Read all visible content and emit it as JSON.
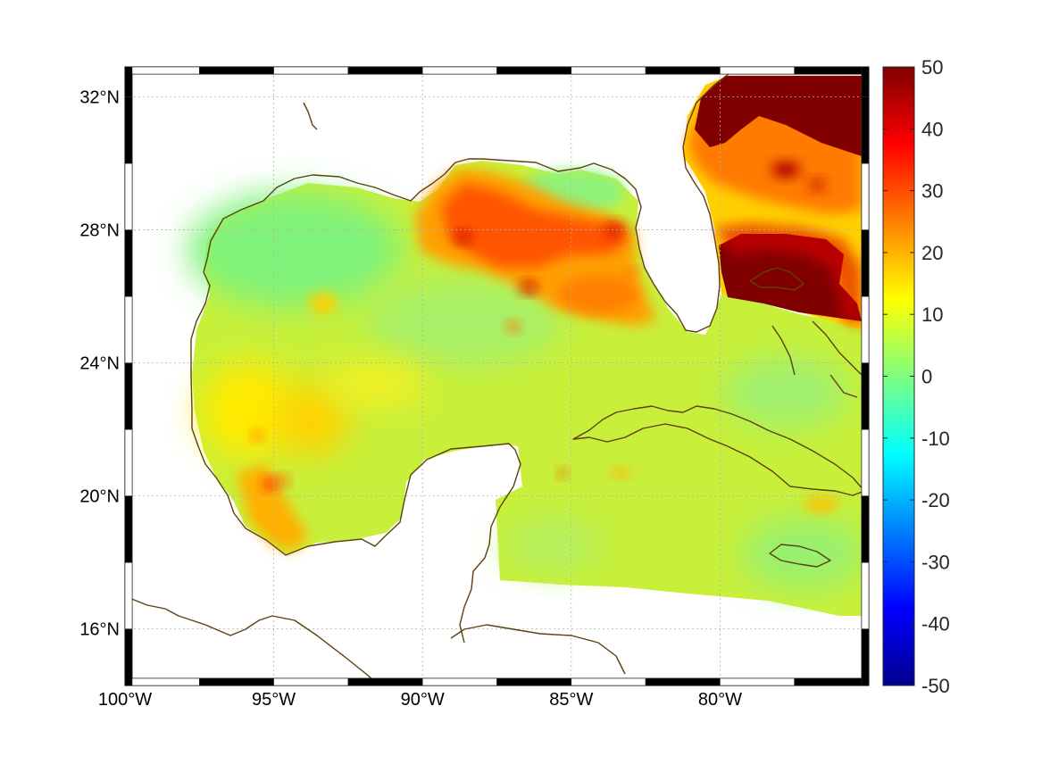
{
  "map": {
    "lon_range": [
      -100,
      -75
    ],
    "lat_range": [
      14.3,
      32.9
    ],
    "lon_ticks": [
      {
        "value": -100,
        "label": "100°W"
      },
      {
        "value": -95,
        "label": "95°W"
      },
      {
        "value": -90,
        "label": "90°W"
      },
      {
        "value": -85,
        "label": "85°W"
      },
      {
        "value": -80,
        "label": "80°W"
      }
    ],
    "lat_ticks": [
      {
        "value": 32,
        "label": "32°N"
      },
      {
        "value": 28,
        "label": "28°N"
      },
      {
        "value": 24,
        "label": "24°N"
      },
      {
        "value": 20,
        "label": "20°N"
      },
      {
        "value": 16,
        "label": "16°N"
      }
    ],
    "grid": true,
    "coastline_color": "#5c4010",
    "colormap": "jet"
  },
  "colorbar": {
    "range": [
      -50,
      50
    ],
    "ticks": [
      {
        "value": 50,
        "label": "50"
      },
      {
        "value": 40,
        "label": "40"
      },
      {
        "value": 30,
        "label": "30"
      },
      {
        "value": 20,
        "label": "20"
      },
      {
        "value": 10,
        "label": "10"
      },
      {
        "value": 0,
        "label": "0"
      },
      {
        "value": -10,
        "label": "-10"
      },
      {
        "value": -20,
        "label": "-20"
      },
      {
        "value": -30,
        "label": "-30"
      },
      {
        "value": -40,
        "label": "-40"
      },
      {
        "value": -50,
        "label": "-50"
      }
    ]
  },
  "field": {
    "background_value": 8,
    "features": [
      {
        "region": "northeast-gulf",
        "value": 27
      },
      {
        "region": "atlantic-off-georgia",
        "value": 50
      },
      {
        "region": "atlantic-off-florida",
        "value": 24
      },
      {
        "region": "bahamas",
        "value": 50
      },
      {
        "region": "western-gulf",
        "value": 4
      },
      {
        "region": "bay-of-campeche",
        "value": 20
      },
      {
        "region": "caribbean",
        "value": 6
      }
    ]
  }
}
